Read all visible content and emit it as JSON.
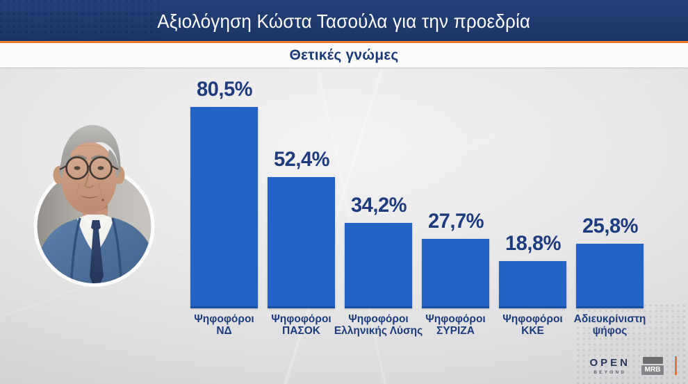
{
  "header": {
    "title": "Αξιολόγηση Κώστα Τασούλα για την προεδρία",
    "subtitle": "Θετικές γνώμες"
  },
  "chart_data": {
    "type": "bar",
    "title": "Αξιολόγηση Κώστα Τασούλα για την προεδρία",
    "subtitle": "Θετικές γνώμες",
    "categories": [
      [
        "Ψηφοφόροι",
        "ΝΔ"
      ],
      [
        "Ψηφοφόροι",
        "ΠΑΣΟΚ"
      ],
      [
        "Ψηφοφόροι",
        "Ελληνικής Λύσης"
      ],
      [
        "Ψηφοφόροι",
        "ΣΥΡΙΖΑ"
      ],
      [
        "Ψηφοφόροι",
        "ΚΚΕ"
      ],
      [
        "Αδιευκρίνιστη",
        "ψήφος"
      ]
    ],
    "values": [
      80.5,
      52.4,
      34.2,
      27.7,
      18.8,
      25.8
    ],
    "value_labels": [
      "80,5%",
      "52,4%",
      "34,2%",
      "27,7%",
      "18,8%",
      "25,8%"
    ],
    "ylim": [
      0,
      100
    ],
    "grid": false,
    "legend": false,
    "bar_color": "#2463c5",
    "label_color": "#1e3c7d"
  },
  "colors": {
    "header_navy": "#1f3a6d",
    "accent_orange": "#e8752a",
    "bar_blue": "#2463c5",
    "text_navy": "#1e3c7d"
  },
  "branding": {
    "open_logo": "OPEN",
    "open_tagline": "BEYOND",
    "mrb_logo": "MRB"
  }
}
